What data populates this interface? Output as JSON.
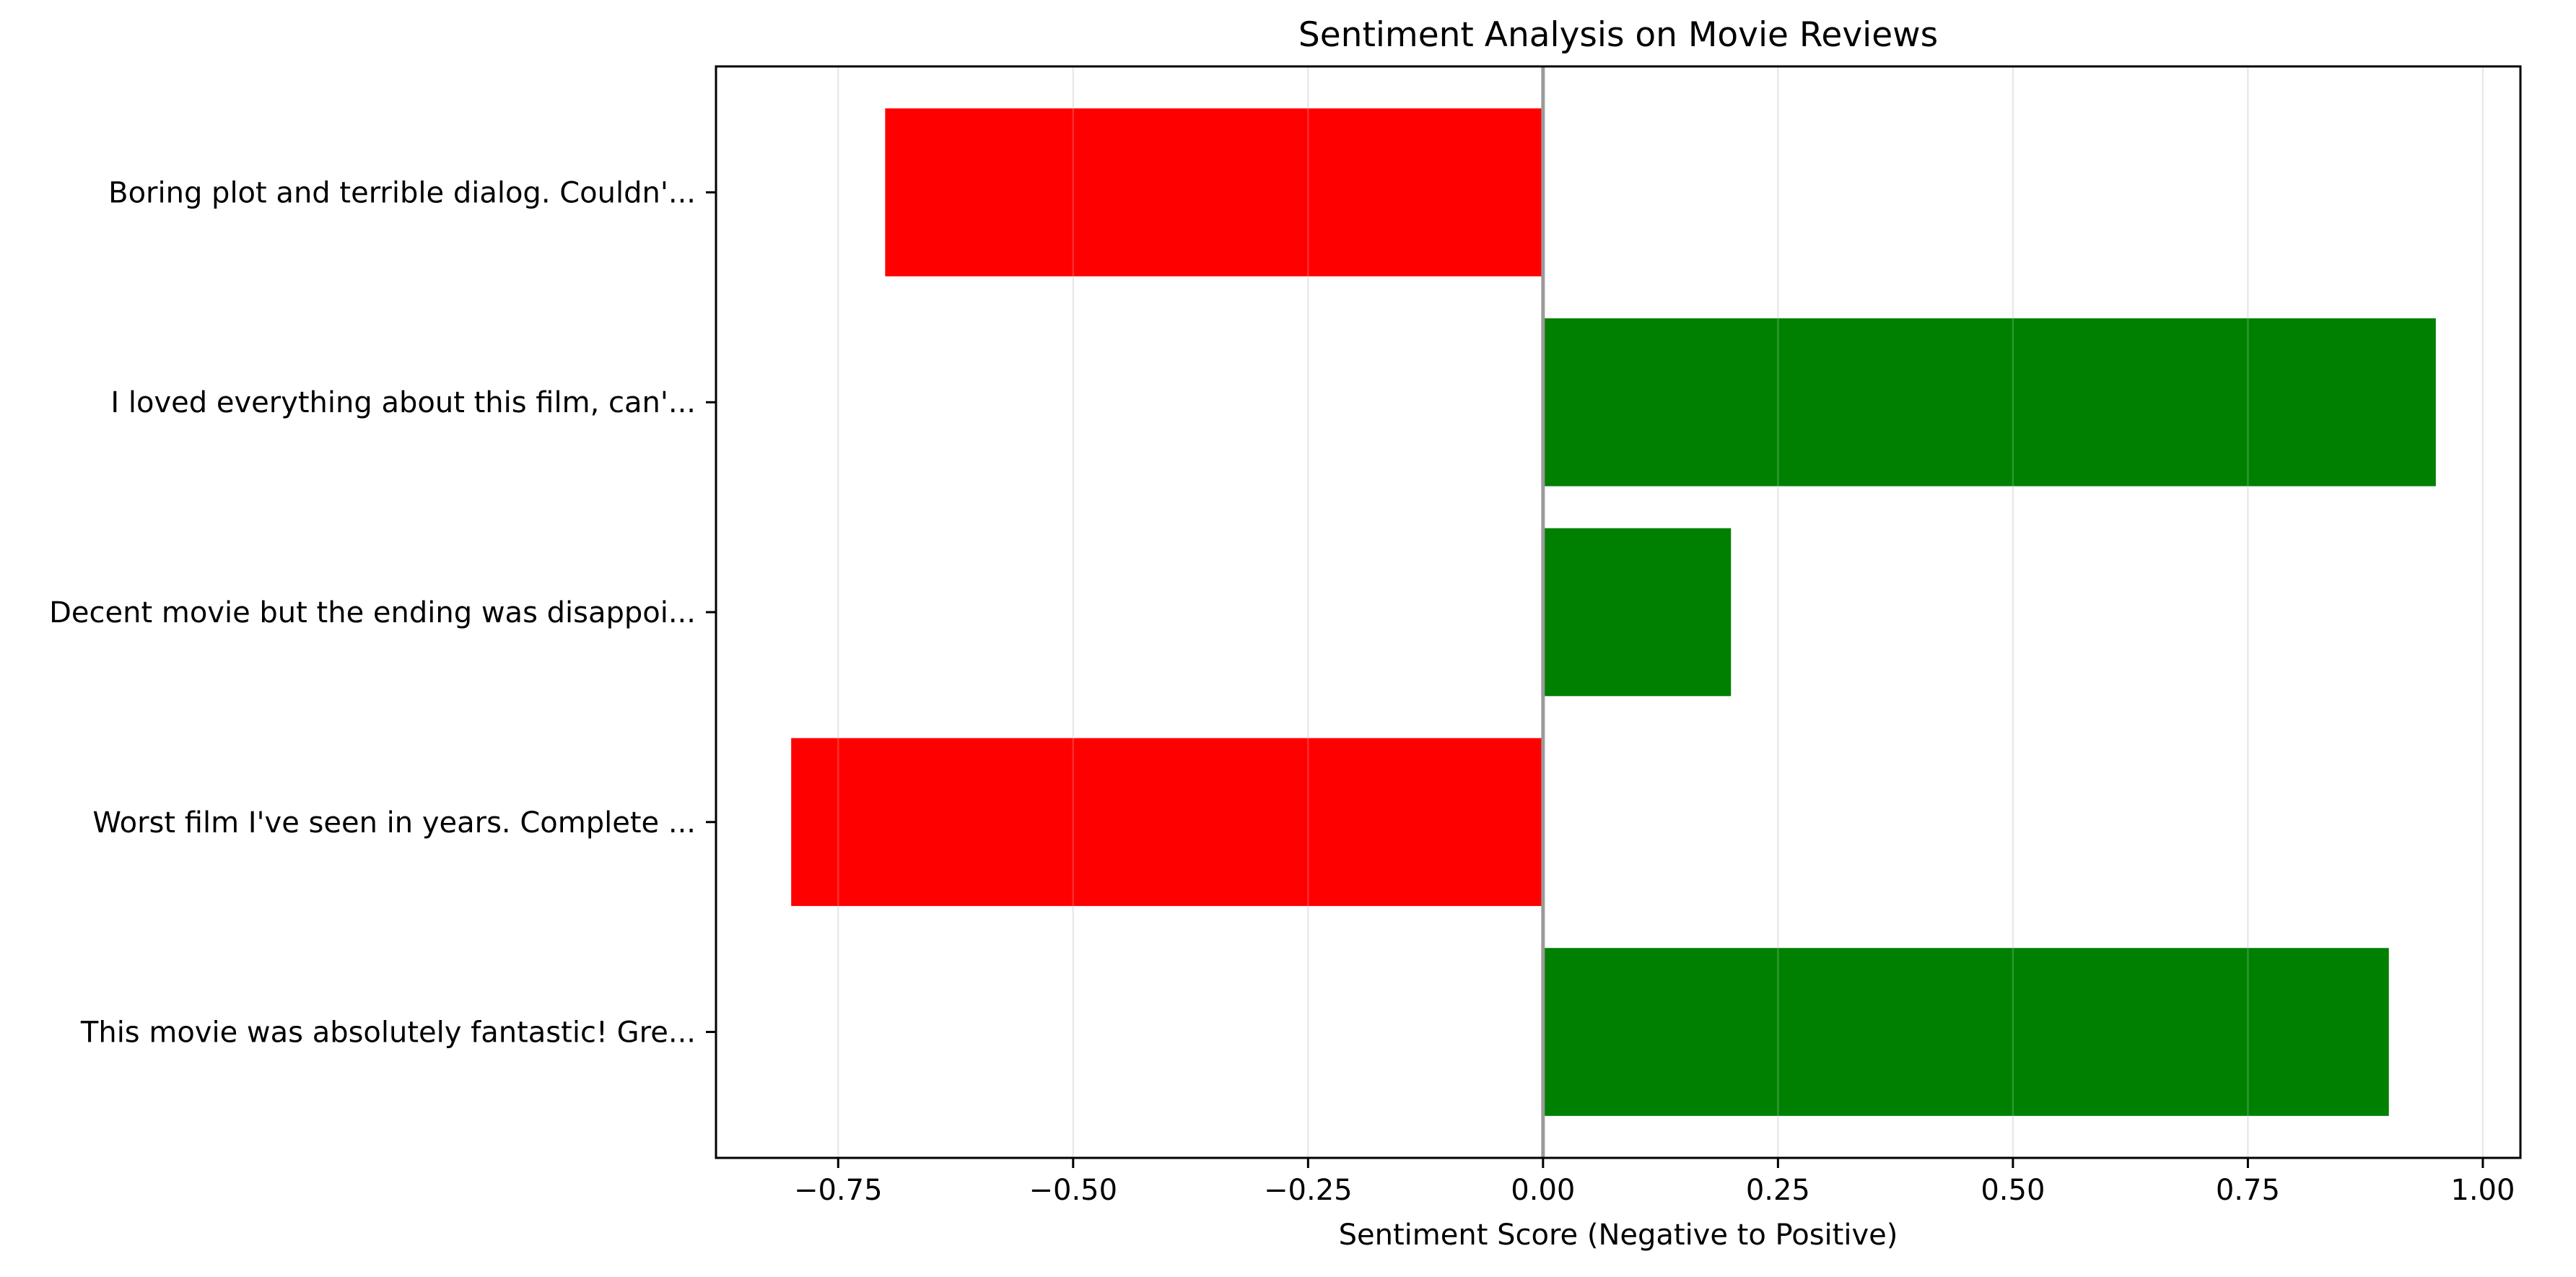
{
  "chart_data": {
    "type": "bar",
    "orientation": "horizontal",
    "title": "Sentiment Analysis on Movie Reviews",
    "xlabel": "Sentiment Score (Negative to Positive)",
    "ylabel": "",
    "xlim": [
      -0.88,
      1.04
    ],
    "xticks": [
      -0.75,
      -0.5,
      -0.25,
      0.0,
      0.25,
      0.5,
      0.75,
      1.0
    ],
    "xtick_labels": [
      "−0.75",
      "−0.50",
      "−0.25",
      "0.00",
      "0.25",
      "0.50",
      "0.75",
      "1.00"
    ],
    "grid": "vertical",
    "zero_line": true,
    "categories": [
      "This movie was absolutely fantastic! Gre...",
      "Worst film I've seen in years. Complete ...",
      "Decent movie but the ending was disappoi...",
      "I loved everything about this film, can'...",
      "Boring plot and terrible dialog. Couldn'..."
    ],
    "values": [
      0.9,
      -0.8,
      0.2,
      0.95,
      -0.7
    ],
    "colors": {
      "positive": "#008000",
      "negative": "#ff0000",
      "grid": "#e4e4e4",
      "zero_line": "#9a9a9a"
    }
  }
}
